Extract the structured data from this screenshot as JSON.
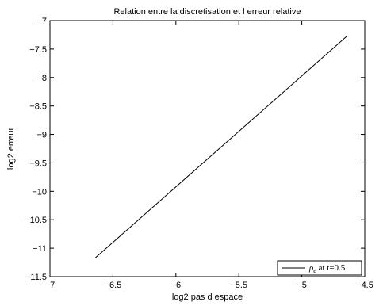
{
  "chart_data": {
    "type": "line",
    "title": "Relation entre la discretisation et l erreur relative",
    "xlabel": "log2 pas d espace",
    "ylabel": "log2 erreur",
    "xlim": [
      -7,
      -4.5
    ],
    "ylim": [
      -11.5,
      -7
    ],
    "xticks": [
      -7,
      -6.5,
      -6,
      -5.5,
      -5,
      -4.5
    ],
    "yticks": [
      -11.5,
      -11,
      -10.5,
      -10,
      -9.5,
      -9,
      -8.5,
      -8,
      -7.5,
      -7
    ],
    "xtick_labels": [
      "−7",
      "−6.5",
      "−6",
      "−5.5",
      "−5",
      "−4.5"
    ],
    "ytick_labels": [
      "−11.5",
      "−11",
      "−10.5",
      "−10",
      "−9.5",
      "−9",
      "−8.5",
      "−8",
      "−7.5",
      "−7"
    ],
    "grid": false,
    "legend_position": "bottom-right",
    "series": [
      {
        "name_symbol": "ρ",
        "name_subscript": "e",
        "name_suffix": " at t=0.5",
        "color": "#000000",
        "x": [
          -6.64,
          -4.64
        ],
        "y": [
          -11.17,
          -7.27
        ]
      }
    ]
  }
}
